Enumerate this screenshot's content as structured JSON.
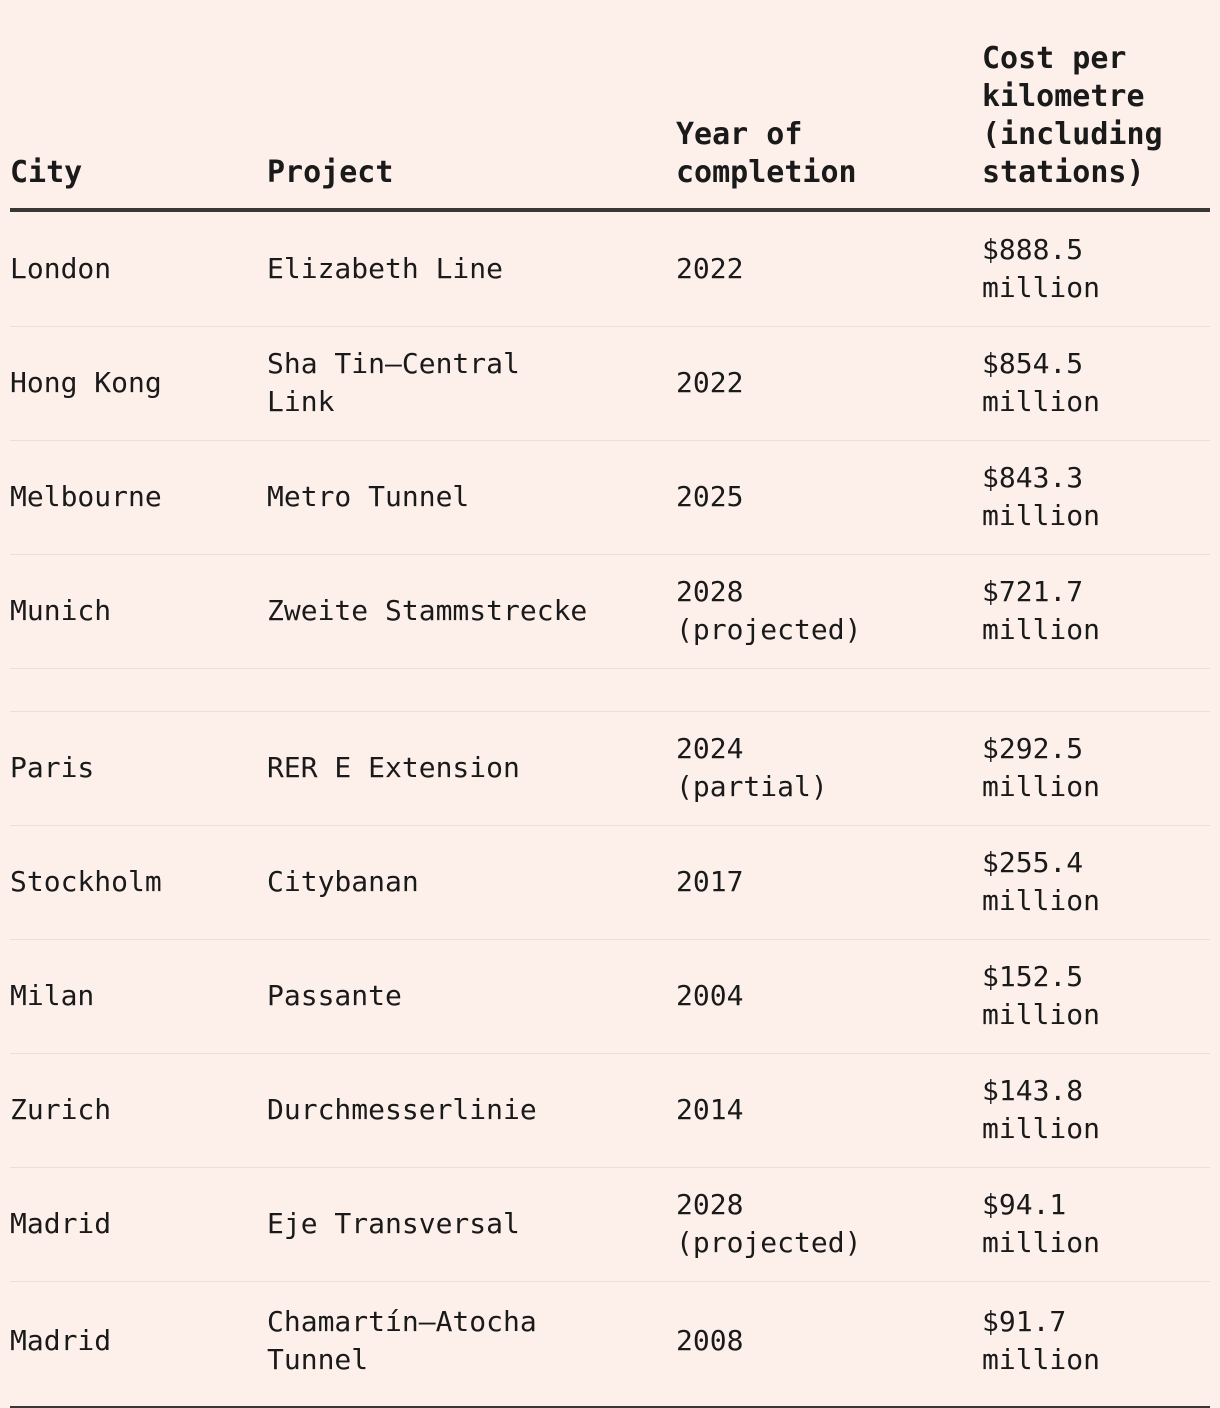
{
  "chart_data": {
    "type": "table",
    "columns": [
      "City",
      "Project",
      "Year of completion",
      "Cost per kilometre (including stations)"
    ],
    "rows": [
      {
        "city": "London",
        "project": "Elizabeth Line",
        "year_of_completion": "2022",
        "cost_per_km": "$888.5 million"
      },
      {
        "city": "Hong Kong",
        "project": "Sha Tin–Central Link",
        "year_of_completion": "2022",
        "cost_per_km": "$854.5 million"
      },
      {
        "city": "Melbourne",
        "project": "Metro Tunnel",
        "year_of_completion": "2025",
        "cost_per_km": "$843.3 million"
      },
      {
        "city": "Munich",
        "project": "Zweite Stammstrecke",
        "year_of_completion": "2028 (projected)",
        "cost_per_km": "$721.7 million"
      },
      {
        "city": "Paris",
        "project": "RER E Extension",
        "year_of_completion": "2024 (partial)",
        "cost_per_km": "$292.5 million"
      },
      {
        "city": "Stockholm",
        "project": "Citybanan",
        "year_of_completion": "2017",
        "cost_per_km": "$255.4 million"
      },
      {
        "city": "Milan",
        "project": "Passante",
        "year_of_completion": "2004",
        "cost_per_km": "$152.5 million"
      },
      {
        "city": "Zurich",
        "project": "Durchmesserlinie",
        "year_of_completion": "2014",
        "cost_per_km": "$143.8 million"
      },
      {
        "city": "Madrid",
        "project": "Eje Transversal",
        "year_of_completion": "2028 (projected)",
        "cost_per_km": "$94.1 million"
      },
      {
        "city": "Madrid",
        "project": "Chamartín–Atocha Tunnel",
        "year_of_completion": "2008",
        "cost_per_km": "$91.7 million"
      }
    ],
    "layout": {
      "group_break_after_row": 4,
      "header_rule": true,
      "row_separators": true
    }
  },
  "table": {
    "header": {
      "city": "City",
      "project": "Project",
      "year": "Year of\ncompletion",
      "cost": "Cost per\nkilometre\n(including\nstations)"
    },
    "rows": [
      {
        "city": "London",
        "project": "Elizabeth Line",
        "year": "2022",
        "cost": "$888.5\nmillion"
      },
      {
        "city": "Hong Kong",
        "project": "Sha Tin–Central\nLink",
        "year": "2022",
        "cost": "$854.5\nmillion"
      },
      {
        "city": "Melbourne",
        "project": "Metro Tunnel",
        "year": "2025",
        "cost": "$843.3\nmillion"
      },
      {
        "city": "Munich",
        "project": "Zweite Stammstrecke",
        "year": "2028\n(projected)",
        "cost": "$721.7\nmillion"
      },
      {
        "spacer": true
      },
      {
        "city": "Paris",
        "project": "RER E Extension",
        "year": "2024\n(partial)",
        "cost": "$292.5\nmillion"
      },
      {
        "city": "Stockholm",
        "project": "Citybanan",
        "year": "2017",
        "cost": "$255.4\nmillion"
      },
      {
        "city": "Milan",
        "project": "Passante",
        "year": "2004",
        "cost": "$152.5\nmillion"
      },
      {
        "city": "Zurich",
        "project": "Durchmesserlinie",
        "year": "2014",
        "cost": "$143.8\nmillion"
      },
      {
        "city": "Madrid",
        "project": "Eje Transversal",
        "year": "2028\n(projected)",
        "cost": "$94.1 million"
      },
      {
        "city": "Madrid",
        "project": "Chamartín–Atocha\nTunnel",
        "year": "2008",
        "cost": "$91.7 million"
      }
    ]
  },
  "colors": {
    "background": "#fdf0eb",
    "text": "#1a1a1a",
    "header_rule": "#3a3633",
    "row_separator": "#ecdfda"
  }
}
